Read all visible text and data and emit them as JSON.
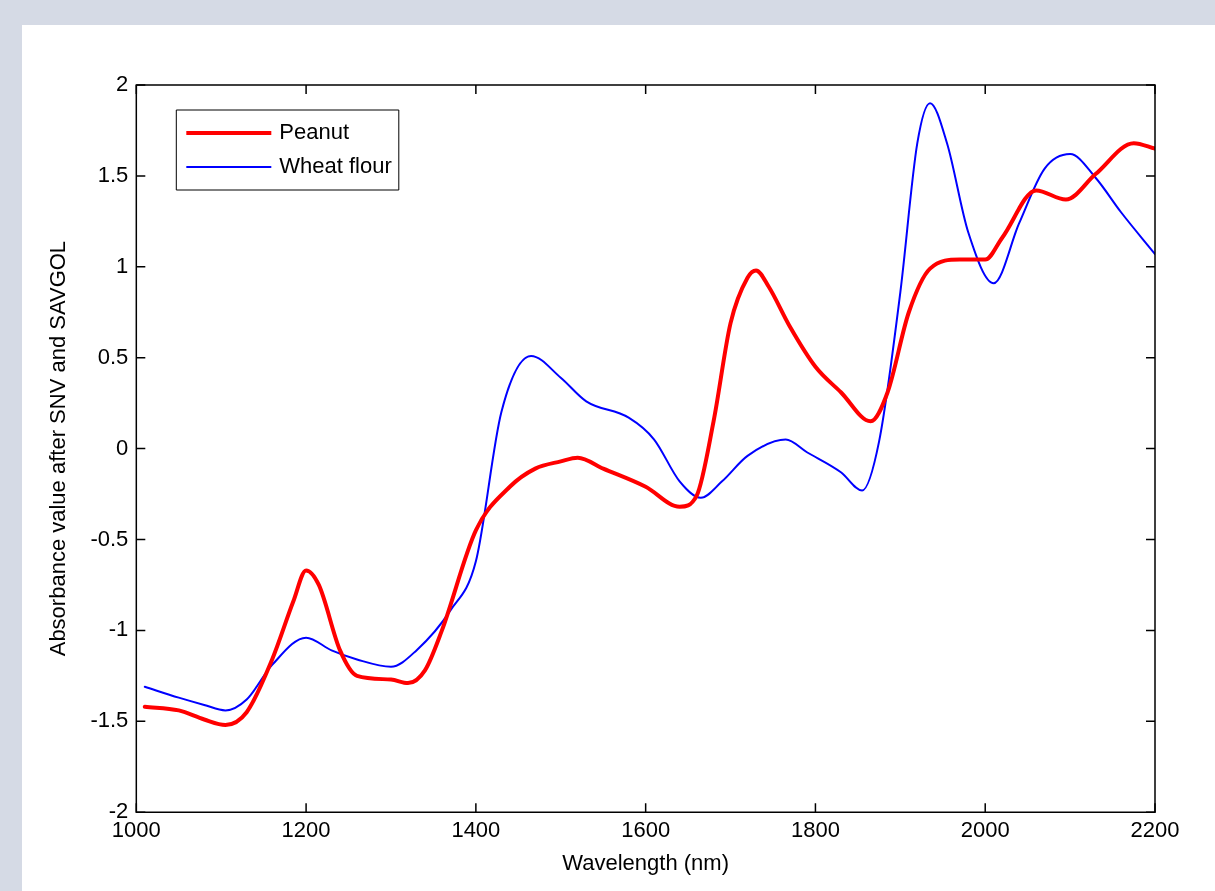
{
  "chart_data": {
    "type": "line",
    "xlabel": "Wavelength (nm)",
    "ylabel": "Absorbance value after SNV and SAVGOL",
    "xlim": [
      1000,
      2200
    ],
    "xticks": [
      1000,
      1200,
      1400,
      1600,
      1800,
      2000,
      2200
    ],
    "ylim": [
      -2,
      2
    ],
    "yticks": [
      -2,
      -1.5,
      -1,
      -0.5,
      0,
      0.5,
      1,
      1.5,
      2
    ],
    "grid": false,
    "legend": "top left",
    "marker": "none",
    "line_style": "solid",
    "series": [
      {
        "name": "Peanut",
        "color": "#ff0000",
        "x": [
          1010,
          1050,
          1080,
          1105,
          1130,
          1160,
          1185,
          1200,
          1215,
          1240,
          1260,
          1300,
          1320,
          1340,
          1360,
          1400,
          1440,
          1470,
          1500,
          1520,
          1550,
          1600,
          1640,
          1660,
          1680,
          1700,
          1720,
          1730,
          1745,
          1770,
          1800,
          1830,
          1865,
          1885,
          1910,
          1935,
          1970,
          2000,
          2020,
          2060,
          2095,
          2130,
          2175,
          2200
        ],
        "values": [
          -1.42,
          -1.44,
          -1.49,
          -1.52,
          -1.45,
          -1.16,
          -0.84,
          -0.67,
          -0.75,
          -1.11,
          -1.25,
          -1.27,
          -1.29,
          -1.22,
          -1.0,
          -0.45,
          -0.21,
          -0.11,
          -0.07,
          -0.05,
          -0.11,
          -0.21,
          -0.32,
          -0.26,
          0.15,
          0.69,
          0.94,
          0.98,
          0.89,
          0.67,
          0.45,
          0.31,
          0.15,
          0.31,
          0.75,
          0.99,
          1.04,
          1.04,
          1.16,
          1.42,
          1.37,
          1.51,
          1.68,
          1.65
        ]
      },
      {
        "name": "Wheat flour",
        "color": "#0000ff",
        "x": [
          1010,
          1050,
          1080,
          1105,
          1130,
          1160,
          1200,
          1230,
          1260,
          1300,
          1330,
          1370,
          1400,
          1430,
          1465,
          1500,
          1530,
          1580,
          1610,
          1640,
          1665,
          1690,
          1720,
          1765,
          1790,
          1830,
          1855,
          1875,
          1900,
          1920,
          1935,
          1955,
          1980,
          2010,
          2040,
          2070,
          2100,
          2130,
          2160,
          2200
        ],
        "values": [
          -1.31,
          -1.37,
          -1.41,
          -1.44,
          -1.38,
          -1.19,
          -1.04,
          -1.11,
          -1.16,
          -1.2,
          -1.11,
          -0.89,
          -0.62,
          0.2,
          0.51,
          0.39,
          0.26,
          0.17,
          0.05,
          -0.18,
          -0.27,
          -0.18,
          -0.04,
          0.05,
          -0.02,
          -0.13,
          -0.23,
          0.04,
          0.86,
          1.68,
          1.9,
          1.68,
          1.19,
          0.91,
          1.24,
          1.54,
          1.62,
          1.49,
          1.3,
          1.07
        ]
      }
    ]
  }
}
